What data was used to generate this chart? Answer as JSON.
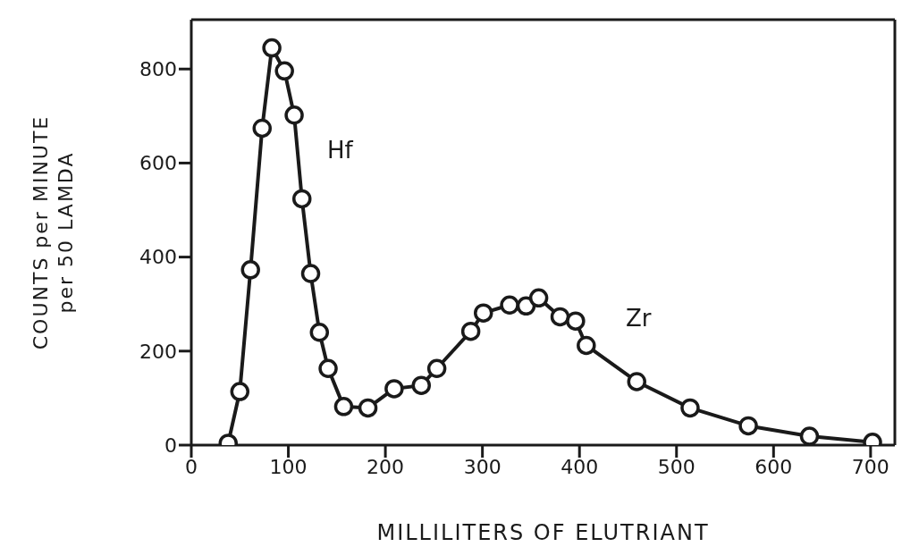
{
  "chart_data": {
    "type": "line",
    "xlabel": "MILLILITERS  OF  ELUTRIANT",
    "ylabel": "COUNTS  per  MINUTE\nper  50  LAMDA",
    "x": [
      38,
      50,
      61,
      73,
      83,
      96,
      106,
      114,
      123,
      132,
      141,
      157,
      182,
      209,
      237,
      253,
      288,
      301,
      328,
      345,
      358,
      380,
      396,
      407,
      459,
      514,
      574,
      637,
      702
    ],
    "series": [
      {
        "color": "#1a1a1a",
        "values": [
          4,
          114,
          373,
          674,
          845,
          796,
          702,
          524,
          365,
          240,
          163,
          82,
          79,
          120,
          127,
          163,
          242,
          281,
          298,
          296,
          313,
          273,
          264,
          212,
          135,
          79,
          41,
          19,
          6
        ]
      }
    ],
    "xlim": [
      0,
      725
    ],
    "xticks": [
      0,
      100,
      200,
      300,
      400,
      500,
      600,
      700
    ],
    "ylim": [
      0,
      905
    ],
    "yticks": [
      0,
      200,
      400,
      600,
      800
    ],
    "marker": "circle",
    "line_style": "solid",
    "grid": false,
    "annotations": [
      "Hf",
      "Zr"
    ]
  }
}
